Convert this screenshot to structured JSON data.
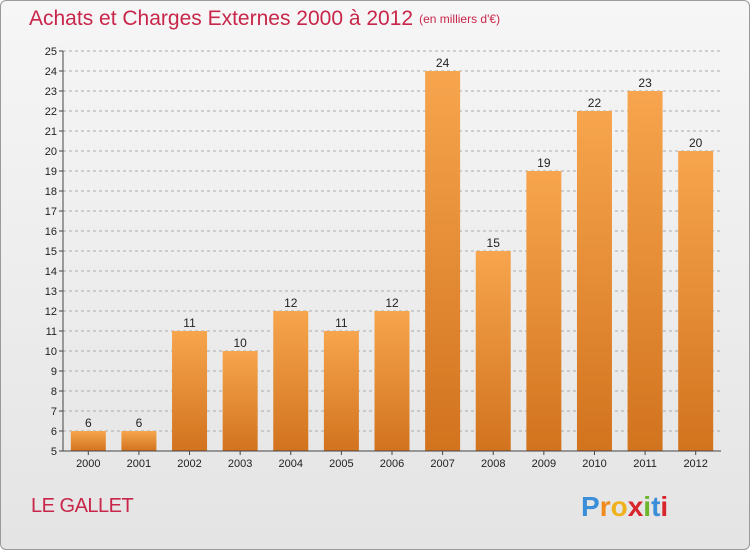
{
  "title": "Achats et Charges Externes 2000 à 2012",
  "title_unit": "(en milliers d'€)",
  "location": "LE GALLET",
  "logo_text": "Proxiti",
  "colors": {
    "accent": "#c8264a",
    "bar_top": "#f7a54e",
    "bar_bottom": "#d2731e",
    "grid": "#aaaaaa"
  },
  "chart_data": {
    "type": "bar",
    "title": "Achats et Charges Externes 2000 à 2012",
    "unit": "(en milliers d'€)",
    "categories": [
      "2000",
      "2001",
      "2002",
      "2003",
      "2004",
      "2005",
      "2006",
      "2007",
      "2008",
      "2009",
      "2010",
      "2011",
      "2012"
    ],
    "values": [
      6,
      6,
      11,
      10,
      12,
      11,
      12,
      24,
      15,
      19,
      22,
      23,
      20
    ],
    "ylim": [
      5,
      25
    ],
    "yticks": [
      5,
      6,
      7,
      8,
      9,
      10,
      11,
      12,
      13,
      14,
      15,
      16,
      17,
      18,
      19,
      20,
      21,
      22,
      23,
      24,
      25
    ],
    "grid": "horizontal dashed",
    "legend": "none"
  }
}
